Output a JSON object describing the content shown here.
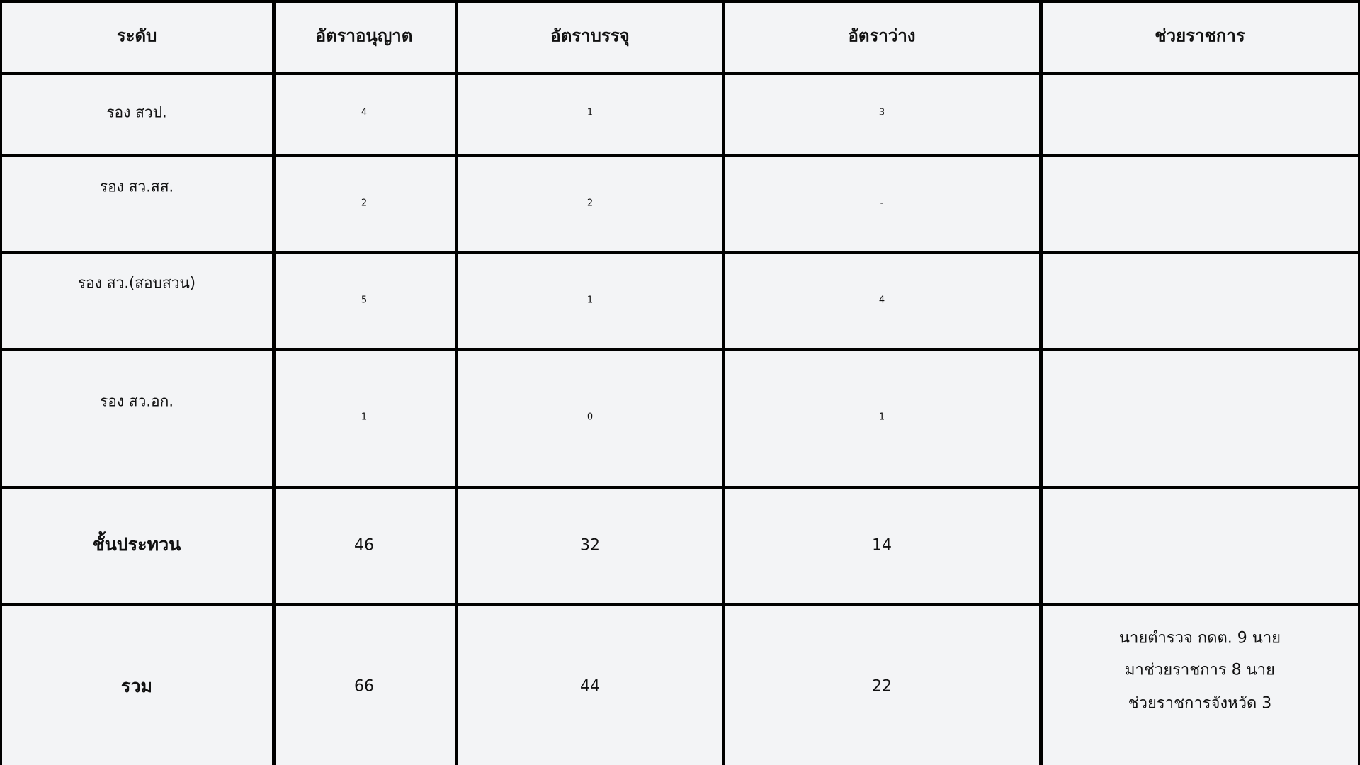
{
  "table": {
    "headers": [
      "ระดับ",
      "อัตราอนุญาต",
      "อัตราบรรจุ",
      "อัตราว่าง",
      "ช่วยราชการ"
    ],
    "rows": [
      {
        "level": "รอง สวป.",
        "allowed": "4",
        "filled": "1",
        "vacant": "3",
        "assist": []
      },
      {
        "level": "รอง สว.สส.",
        "allowed": "2",
        "filled": "2",
        "vacant": "-",
        "assist": []
      },
      {
        "level": "รอง สว.(สอบสวน)",
        "allowed": "5",
        "filled": "1",
        "vacant": "4",
        "assist": []
      },
      {
        "level": "รอง สว.อก.",
        "allowed": "1",
        "filled": "0",
        "vacant": "1",
        "assist": []
      },
      {
        "level": "ชั้นประทวน",
        "allowed": "46",
        "filled": "32",
        "vacant": "14",
        "assist": []
      },
      {
        "level": "รวม",
        "allowed": "66",
        "filled": "44",
        "vacant": "22",
        "assist": [
          "นายตำรวจ กดต. 9 นาย",
          "มาช่วยราชการ 8 นาย",
          "ช่วยราชการจังหวัด 3"
        ]
      }
    ]
  }
}
